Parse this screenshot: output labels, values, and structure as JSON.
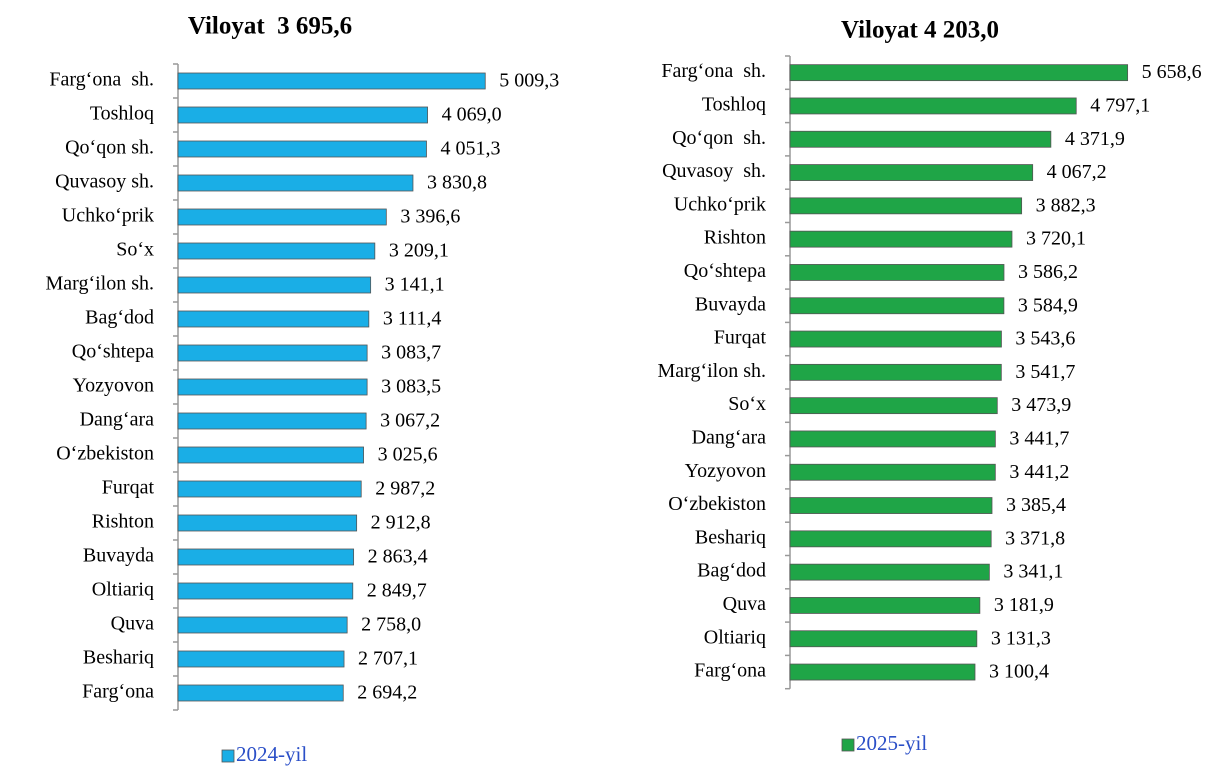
{
  "chart_data": [
    {
      "type": "bar",
      "orientation": "horizontal",
      "title": "Viloyat  3 695,6",
      "categories": [
        "Farg‘ona  sh.",
        "Toshloq",
        "Qo‘qon sh.",
        "Quvasoy sh.",
        "Uchko‘prik",
        "So‘x",
        "Marg‘ilon sh.",
        "Bag‘dod",
        "Qo‘shtepa",
        "Yozyovon",
        "Dang‘ara",
        "O‘zbekiston",
        "Furqat",
        "Rishton",
        "Buvayda",
        "Oltiariq",
        "Quva",
        "Beshariq",
        "Farg‘ona"
      ],
      "series": [
        {
          "name": "2024-yil",
          "color": "#1aaee6",
          "values": [
            5009.3,
            4069.0,
            4051.3,
            3830.8,
            3396.6,
            3209.1,
            3141.1,
            3111.4,
            3083.7,
            3083.5,
            3067.2,
            3025.6,
            2987.2,
            2912.8,
            2863.4,
            2849.7,
            2758.0,
            2707.1,
            2694.2
          ],
          "value_labels": [
            "5 009,3",
            "4 069,0",
            "4 051,3",
            "3 830,8",
            "3 396,6",
            "3 209,1",
            "3 141,1",
            "3 111,4",
            "3 083,7",
            "3 083,5",
            "3 067,2",
            "3 025,6",
            "2 987,2",
            "2 912,8",
            "2 863,4",
            "2 849,7",
            "2 758,0",
            "2 707,1",
            "2 694,2"
          ]
        }
      ],
      "xlim": [
        0,
        6000
      ]
    },
    {
      "type": "bar",
      "orientation": "horizontal",
      "title": "Viloyat 4 203,0",
      "categories": [
        "Farg‘ona  sh.",
        "Toshloq",
        "Qo‘qon  sh.",
        "Quvasoy  sh.",
        "Uchko‘prik",
        "Rishton",
        "Qo‘shtepa",
        "Buvayda",
        "Furqat",
        "Marg‘ilon sh.",
        "So‘x",
        "Dang‘ara",
        "Yozyovon",
        "O‘zbekiston",
        "Beshariq",
        "Bag‘dod",
        "Quva",
        "Oltiariq",
        "Farg‘ona"
      ],
      "series": [
        {
          "name": "2025-yil",
          "color": "#1fa547",
          "values": [
            5658.6,
            4797.1,
            4371.9,
            4067.2,
            3882.3,
            3720.1,
            3586.2,
            3584.9,
            3543.6,
            3541.7,
            3473.9,
            3441.7,
            3441.2,
            3385.4,
            3371.8,
            3341.1,
            3181.9,
            3131.3,
            3100.4
          ],
          "value_labels": [
            "5 658,6",
            "4 797,1",
            "4 371,9",
            "4 067,2",
            "3 882,3",
            "3 720,1",
            "3 586,2",
            "3 584,9",
            "3 543,6",
            "3 541,7",
            "3 473,9",
            "3 441,7",
            "3 441,2",
            "3 385,4",
            "3 371,8",
            "3 341,1",
            "3 181,9",
            "3 131,3",
            "3 100,4"
          ]
        }
      ],
      "xlim": [
        0,
        6000
      ]
    }
  ]
}
